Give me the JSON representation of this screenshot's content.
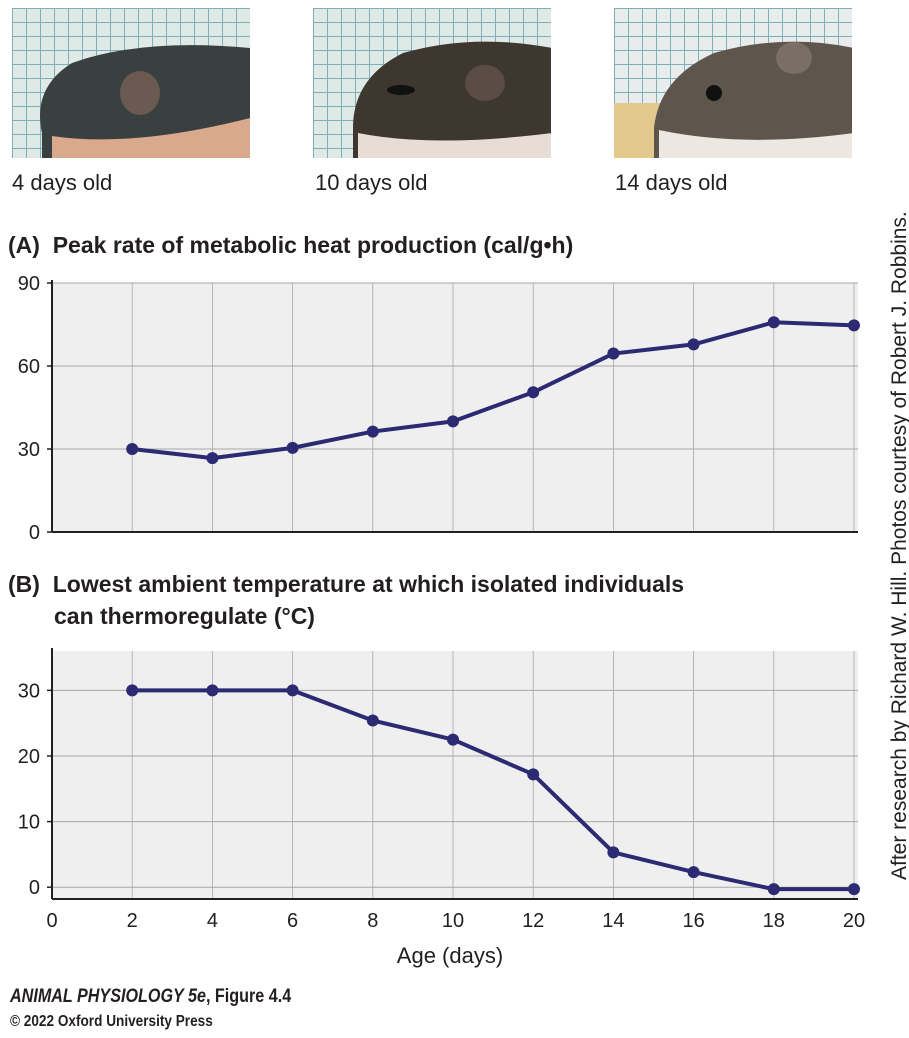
{
  "photos": [
    {
      "caption": "4 days old"
    },
    {
      "caption": "10 days old"
    },
    {
      "caption": "14 days old"
    }
  ],
  "credit": "After research by Richard W. Hill. Photos courtesy of Robert J. Robbins.",
  "footer": {
    "book": "ANIMAL PHYSIOLOGY 5e",
    "figure": ", Figure 4.4",
    "copyright": "© 2022 Oxford University Press"
  },
  "colors": {
    "line": "#2b2a72",
    "plot_bg": "#efefef",
    "grid": "#a7a7a7"
  },
  "chart_data": [
    {
      "type": "line",
      "panel_label": "(A)",
      "title": "Peak rate of metabolic heat production (cal/g•h)",
      "x": [
        2,
        4,
        6,
        8,
        10,
        12,
        14,
        16,
        18,
        20
      ],
      "values": [
        30,
        26.7,
        30.4,
        36.3,
        40,
        50.5,
        64.5,
        67.8,
        75.8,
        74.7
      ],
      "xlim": [
        0,
        20
      ],
      "ylim": [
        0,
        90
      ],
      "yticks": [
        0,
        30,
        60,
        90
      ],
      "grid": true
    },
    {
      "type": "line",
      "panel_label": "(B)",
      "title": "Lowest ambient temperature at which isolated individuals",
      "title_line2": "can thermoregulate (°C)",
      "x": [
        2,
        4,
        6,
        8,
        10,
        12,
        14,
        16,
        18,
        20
      ],
      "values": [
        30,
        30,
        30,
        25.4,
        22.5,
        17.2,
        5.3,
        2.3,
        -0.3,
        -0.3
      ],
      "xlim": [
        0,
        20
      ],
      "ylim": [
        -1.8,
        36
      ],
      "yticks": [
        0,
        10,
        20,
        30
      ],
      "xticks": [
        0,
        2,
        4,
        6,
        8,
        10,
        12,
        14,
        16,
        18,
        20
      ],
      "xlabel": "Age (days)",
      "grid": true
    }
  ]
}
